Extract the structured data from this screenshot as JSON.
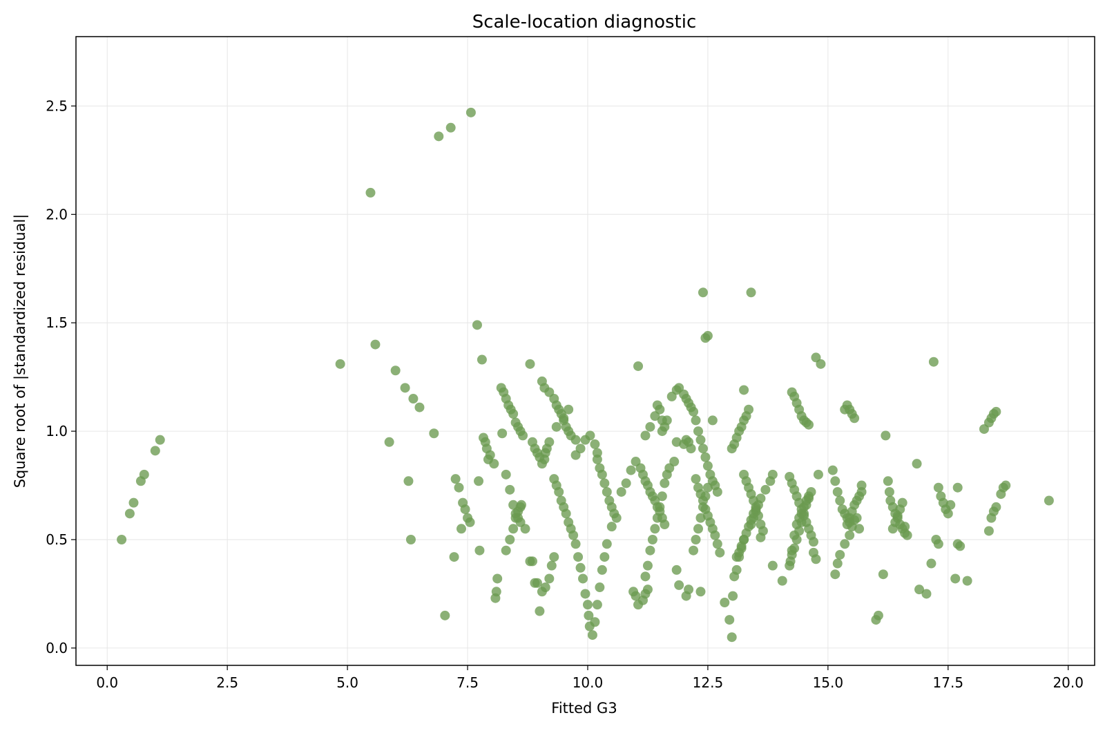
{
  "chart_data": {
    "type": "scatter",
    "title": "Scale-location diagnostic",
    "xlabel": "Fitted G3",
    "ylabel": "Square root of |standardized residual|",
    "xlim": [
      -0.65,
      20.55
    ],
    "ylim": [
      -0.08,
      2.82
    ],
    "xticks": [
      0.0,
      2.5,
      5.0,
      7.5,
      10.0,
      12.5,
      15.0,
      17.5,
      20.0
    ],
    "xtick_labels": [
      "0.0",
      "2.5",
      "5.0",
      "7.5",
      "10.0",
      "12.5",
      "15.0",
      "17.5",
      "20.0"
    ],
    "yticks": [
      0.0,
      0.5,
      1.0,
      1.5,
      2.0,
      2.5
    ],
    "ytick_labels": [
      "0.0",
      "0.5",
      "1.0",
      "1.5",
      "2.0",
      "2.5"
    ],
    "grid": true,
    "point_color": "#6a9a4f",
    "x": [
      0.3,
      0.47,
      0.55,
      0.7,
      0.77,
      1.0,
      1.1,
      4.85,
      5.48,
      5.58,
      5.87,
      6.0,
      6.2,
      6.27,
      6.32,
      6.37,
      6.5,
      6.8,
      6.9,
      7.03,
      7.15,
      7.22,
      7.25,
      7.32,
      7.37,
      7.4,
      7.45,
      7.5,
      7.55,
      7.57,
      7.7,
      7.73,
      7.75,
      7.8,
      7.83,
      7.87,
      7.9,
      7.93,
      7.97,
      8.05,
      8.08,
      8.1,
      8.12,
      8.2,
      8.25,
      8.3,
      8.35,
      8.4,
      8.45,
      8.5,
      8.55,
      8.6,
      8.65,
      8.22,
      8.3,
      8.38,
      8.45,
      8.5,
      8.55,
      8.6,
      8.7,
      8.8,
      8.9,
      9.0,
      8.3,
      8.38,
      8.45,
      8.5,
      8.55,
      8.6,
      8.62,
      8.8,
      8.85,
      8.9,
      8.95,
      9.0,
      9.05,
      9.1,
      9.12,
      9.15,
      9.2,
      9.05,
      9.1,
      9.2,
      9.3,
      9.35,
      9.4,
      9.45,
      9.5,
      9.55,
      9.6,
      9.65,
      9.75,
      9.3,
      9.35,
      9.4,
      9.45,
      9.5,
      9.55,
      9.6,
      9.65,
      9.7,
      9.75,
      9.8,
      9.85,
      9.9,
      9.95,
      10.0,
      10.02,
      10.04,
      8.85,
      8.95,
      9.05,
      9.12,
      9.2,
      9.25,
      9.3,
      9.35,
      9.5,
      9.6,
      9.75,
      9.85,
      9.95,
      10.05,
      10.15,
      10.2,
      10.2,
      10.25,
      10.3,
      10.35,
      10.4,
      10.45,
      10.5,
      10.55,
      10.6,
      10.1,
      10.15,
      10.2,
      10.25,
      10.3,
      10.35,
      10.4,
      10.5,
      10.7,
      10.8,
      10.9,
      11.0,
      11.05,
      11.1,
      11.15,
      11.2,
      11.25,
      11.3,
      11.35,
      11.4,
      11.45,
      11.5,
      11.55,
      11.6,
      11.2,
      11.25,
      11.3,
      11.35,
      11.4,
      11.45,
      11.5,
      11.55,
      11.6,
      11.65,
      11.7,
      11.8,
      11.85,
      11.55,
      11.6,
      11.65,
      11.75,
      11.85,
      11.2,
      11.3,
      11.4,
      11.45,
      11.5,
      11.55,
      11.05,
      11.15,
      11.2,
      11.25,
      10.95,
      11.0,
      11.9,
      12.0,
      12.05,
      12.1,
      12.15,
      12.2,
      12.25,
      12.3,
      12.35,
      12.4,
      12.45,
      12.5,
      12.55,
      12.6,
      12.65,
      12.7,
      12.25,
      12.3,
      12.35,
      12.4,
      12.45,
      12.5,
      12.55,
      12.6,
      12.65,
      12.7,
      12.75,
      12.2,
      12.25,
      12.3,
      12.35,
      12.4,
      12.45,
      12.5,
      12.0,
      12.05,
      12.1,
      12.15,
      11.85,
      11.9,
      12.05,
      12.1,
      12.4,
      12.45,
      12.5,
      12.6,
      12.35,
      12.85,
      12.95,
      13.0,
      13.02,
      13.0,
      13.05,
      13.1,
      13.15,
      13.2,
      13.25,
      13.3,
      13.35,
      13.25,
      13.3,
      13.35,
      13.4,
      13.45,
      13.5,
      13.55,
      13.6,
      13.65,
      13.4,
      13.45,
      13.5,
      13.55,
      13.6,
      13.7,
      13.8,
      13.85,
      13.1,
      13.15,
      13.2,
      13.25,
      13.3,
      13.35,
      13.4,
      13.45,
      13.5,
      13.05,
      13.1,
      13.15,
      13.2,
      13.25,
      13.25,
      13.4,
      13.6,
      13.85,
      14.05,
      14.2,
      14.25,
      14.3,
      14.35,
      14.4,
      14.45,
      14.5,
      14.55,
      14.6,
      14.65,
      14.7,
      14.25,
      14.3,
      14.35,
      14.4,
      14.45,
      14.5,
      14.55,
      14.6,
      14.65,
      14.25,
      14.3,
      14.35,
      14.4,
      14.45,
      14.5,
      14.55,
      14.6,
      14.2,
      14.22,
      14.25,
      14.3,
      14.35,
      14.4,
      14.45,
      14.5,
      14.55,
      14.6,
      14.7,
      14.75,
      14.8,
      14.75,
      14.85,
      15.1,
      15.15,
      15.2,
      15.25,
      15.3,
      15.35,
      15.4,
      15.45,
      15.4,
      15.45,
      15.5,
      15.55,
      15.6,
      15.65,
      15.7,
      15.35,
      15.4,
      15.45,
      15.5,
      15.55,
      15.6,
      15.65,
      15.15,
      15.2,
      15.25,
      15.35,
      15.45,
      15.5,
      15.55,
      15.7,
      16.0,
      16.05,
      16.15,
      16.2,
      16.25,
      16.28,
      16.3,
      16.35,
      16.4,
      16.45,
      16.5,
      16.55,
      16.6,
      16.35,
      16.4,
      16.45,
      16.5,
      16.55,
      16.6,
      16.65,
      16.85,
      16.9,
      17.05,
      17.15,
      17.2,
      17.3,
      17.35,
      17.4,
      17.45,
      17.5,
      17.55,
      17.7,
      17.75,
      17.9,
      17.25,
      17.3,
      17.65,
      17.7,
      18.25,
      18.35,
      18.4,
      18.45,
      18.5,
      18.35,
      18.4,
      18.45,
      18.5,
      18.6,
      18.65,
      18.7,
      19.6
    ],
    "y": [
      0.5,
      0.62,
      0.67,
      0.77,
      0.8,
      0.91,
      0.96,
      1.31,
      2.1,
      1.4,
      0.95,
      1.28,
      1.2,
      0.77,
      0.5,
      1.15,
      1.11,
      0.99,
      2.36,
      0.15,
      2.4,
      0.42,
      0.78,
      0.74,
      0.55,
      0.67,
      0.64,
      0.6,
      0.58,
      2.47,
      1.49,
      0.77,
      0.45,
      1.33,
      0.97,
      0.95,
      0.92,
      0.87,
      0.89,
      0.85,
      0.23,
      0.26,
      0.32,
      1.2,
      1.18,
      1.15,
      1.12,
      1.1,
      1.08,
      1.04,
      1.02,
      1.0,
      0.98,
      0.99,
      0.8,
      0.73,
      0.66,
      0.62,
      0.6,
      0.58,
      0.55,
      0.4,
      0.3,
      0.17,
      0.45,
      0.5,
      0.55,
      0.6,
      0.63,
      0.65,
      0.66,
      1.31,
      0.95,
      0.92,
      0.9,
      0.88,
      0.85,
      0.87,
      0.9,
      0.92,
      0.95,
      1.23,
      1.2,
      1.18,
      1.15,
      1.12,
      1.1,
      1.08,
      1.05,
      1.02,
      1.0,
      0.98,
      0.96,
      0.78,
      0.75,
      0.72,
      0.68,
      0.65,
      0.62,
      0.58,
      0.55,
      0.52,
      0.48,
      0.42,
      0.37,
      0.32,
      0.25,
      0.2,
      0.15,
      0.1,
      0.4,
      0.3,
      0.26,
      0.28,
      0.32,
      0.38,
      0.42,
      1.02,
      1.06,
      1.1,
      0.89,
      0.92,
      0.96,
      0.98,
      0.94,
      0.9,
      0.87,
      0.83,
      0.8,
      0.76,
      0.72,
      0.68,
      0.65,
      0.62,
      0.6,
      0.06,
      0.12,
      0.2,
      0.28,
      0.36,
      0.42,
      0.48,
      0.56,
      0.72,
      0.76,
      0.82,
      0.86,
      1.3,
      0.83,
      0.8,
      0.77,
      0.75,
      0.72,
      0.7,
      0.68,
      0.65,
      0.63,
      0.6,
      0.57,
      0.33,
      0.38,
      0.45,
      0.5,
      0.55,
      0.6,
      0.65,
      0.7,
      0.76,
      0.8,
      0.83,
      0.86,
      0.95,
      1.0,
      1.02,
      1.05,
      1.16,
      1.19,
      0.98,
      1.02,
      1.07,
      1.12,
      1.1,
      1.05,
      0.2,
      0.22,
      0.25,
      0.27,
      0.26,
      0.24,
      1.2,
      1.17,
      1.15,
      1.13,
      1.11,
      1.09,
      1.05,
      1.0,
      0.96,
      0.92,
      0.88,
      0.84,
      0.8,
      0.77,
      0.75,
      0.72,
      0.78,
      0.74,
      0.71,
      0.68,
      0.64,
      0.61,
      0.58,
      0.55,
      0.52,
      0.48,
      0.44,
      0.45,
      0.5,
      0.55,
      0.6,
      0.65,
      0.7,
      0.74,
      0.94,
      0.96,
      0.95,
      0.92,
      0.36,
      0.29,
      0.24,
      0.27,
      1.64,
      1.43,
      1.44,
      1.05,
      0.26,
      0.21,
      0.13,
      0.05,
      0.24,
      0.92,
      0.94,
      0.97,
      1.0,
      1.02,
      1.05,
      1.07,
      1.1,
      0.8,
      0.77,
      0.74,
      0.71,
      0.68,
      0.64,
      0.61,
      0.57,
      0.54,
      0.57,
      0.6,
      0.63,
      0.66,
      0.69,
      0.73,
      0.77,
      0.8,
      0.42,
      0.44,
      0.47,
      0.5,
      0.53,
      0.56,
      0.59,
      0.62,
      0.65,
      0.33,
      0.36,
      0.42,
      0.46,
      0.5,
      1.19,
      1.64,
      0.51,
      0.38,
      0.31,
      0.79,
      0.76,
      0.73,
      0.7,
      0.67,
      0.64,
      0.61,
      0.58,
      0.55,
      0.52,
      0.49,
      0.43,
      0.46,
      0.5,
      0.54,
      0.58,
      0.62,
      0.66,
      0.69,
      0.72,
      1.18,
      1.16,
      1.13,
      1.1,
      1.07,
      1.05,
      1.04,
      1.03,
      0.38,
      0.4,
      0.45,
      0.52,
      0.57,
      0.6,
      0.62,
      0.65,
      0.68,
      0.7,
      0.44,
      0.41,
      0.8,
      1.34,
      1.31,
      0.82,
      0.77,
      0.72,
      0.68,
      0.64,
      0.62,
      0.6,
      0.58,
      0.57,
      0.6,
      0.63,
      0.66,
      0.68,
      0.7,
      0.72,
      1.1,
      1.12,
      1.1,
      1.08,
      1.06,
      0.6,
      0.55,
      0.34,
      0.39,
      0.43,
      0.48,
      0.52,
      0.56,
      0.59,
      0.75,
      0.13,
      0.15,
      0.34,
      0.98,
      0.77,
      0.72,
      0.68,
      0.65,
      0.62,
      0.6,
      0.57,
      0.55,
      0.53,
      0.55,
      0.58,
      0.61,
      0.64,
      0.67,
      0.56,
      0.52,
      0.85,
      0.27,
      0.25,
      0.39,
      1.32,
      0.74,
      0.7,
      0.67,
      0.64,
      0.62,
      0.66,
      0.74,
      0.47,
      0.31,
      0.5,
      0.48,
      0.32,
      0.48,
      1.01,
      1.04,
      1.06,
      1.08,
      1.09,
      0.54,
      0.6,
      0.63,
      0.65,
      0.71,
      0.74,
      0.75,
      0.68
    ]
  }
}
